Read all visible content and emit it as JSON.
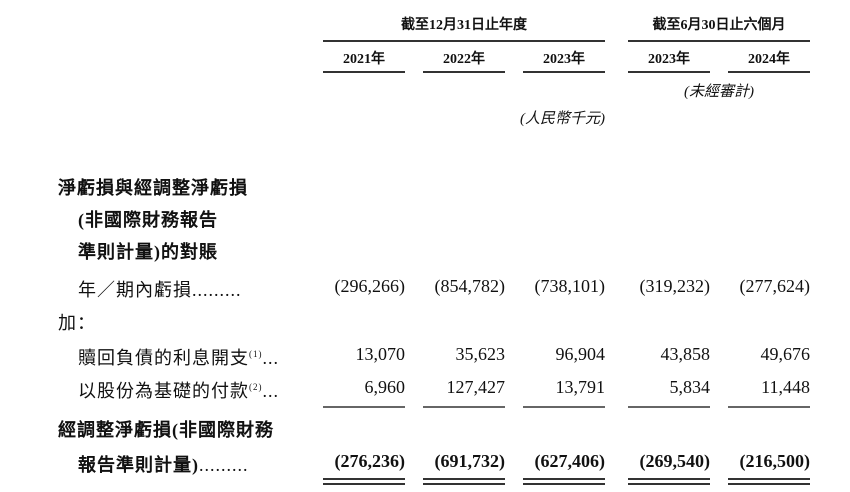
{
  "header": {
    "group_year": "截至12月31日止年度",
    "group_half": "截至6月30日止六個月",
    "columns": [
      "2021年",
      "2022年",
      "2023年",
      "2023年",
      "2024年"
    ],
    "unaudited": "(未經審計)",
    "unit": "(人民幣千元)"
  },
  "section_title_lines": [
    "淨虧損與經調整淨虧損",
    "(非國際財務報告",
    "準則計量)的對賬"
  ],
  "rows": [
    {
      "label": "年／期內虧損",
      "leader": ".........",
      "sup": "",
      "values": [
        "(296,266)",
        "(854,782)",
        "(738,101)",
        "(319,232)",
        "(277,624)"
      ]
    },
    {
      "label": "加：",
      "leader": "",
      "sup": "",
      "values": []
    },
    {
      "label": "贖回負債的利息開支",
      "leader": "...",
      "sup": "(1)",
      "values": [
        "13,070",
        "35,623",
        "96,904",
        "43,858",
        "49,676"
      ]
    },
    {
      "label": "以股份為基礎的付款",
      "leader": "...",
      "sup": "(2)",
      "values": [
        "6,960",
        "127,427",
        "13,791",
        "5,834",
        "11,448"
      ]
    }
  ],
  "total": {
    "label_lines": [
      "經調整淨虧損(非國際財務",
      "報告準則計量)"
    ],
    "leader": ".........",
    "values": [
      "(276,236)",
      "(691,732)",
      "(627,406)",
      "(269,540)",
      "(216,500)"
    ]
  }
}
